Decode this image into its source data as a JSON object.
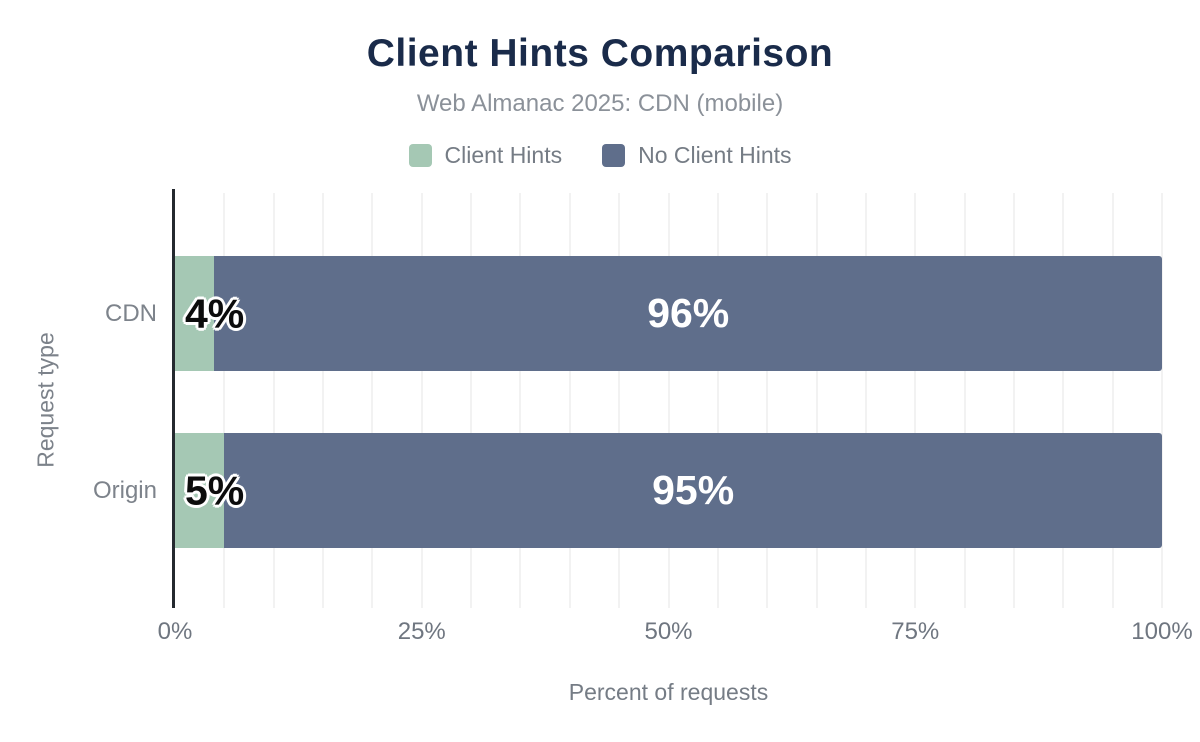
{
  "chart_data": {
    "type": "bar",
    "orientation": "horizontal",
    "stacked": true,
    "title": "Client Hints Comparison",
    "subtitle": "Web Almanac 2025: CDN (mobile)",
    "categories": [
      "CDN",
      "Origin"
    ],
    "series": [
      {
        "name": "Client Hints",
        "color": "#a5c8b4",
        "values": [
          4,
          5
        ],
        "labels": [
          "4%",
          "5%"
        ]
      },
      {
        "name": "No Client Hints",
        "color": "#5f6e8b",
        "values": [
          96,
          95
        ],
        "labels": [
          "96%",
          "95%"
        ]
      }
    ],
    "xlabel": "Percent of requests",
    "ylabel": "Request type",
    "xlim": [
      0,
      100
    ],
    "x_ticks": [
      {
        "value": 0,
        "label": "0%"
      },
      {
        "value": 25,
        "label": "25%"
      },
      {
        "value": 50,
        "label": "50%"
      },
      {
        "value": 75,
        "label": "75%"
      },
      {
        "value": 100,
        "label": "100%"
      }
    ],
    "grid": {
      "axis": "x",
      "minor_step_percent": 5,
      "color": "#f2f2f2"
    },
    "legend_position": "top",
    "colors": {
      "title": "#1a2b4a",
      "subtitle": "#8b9199",
      "axis_line": "#24292f",
      "tick_text": "#6f7680"
    }
  }
}
